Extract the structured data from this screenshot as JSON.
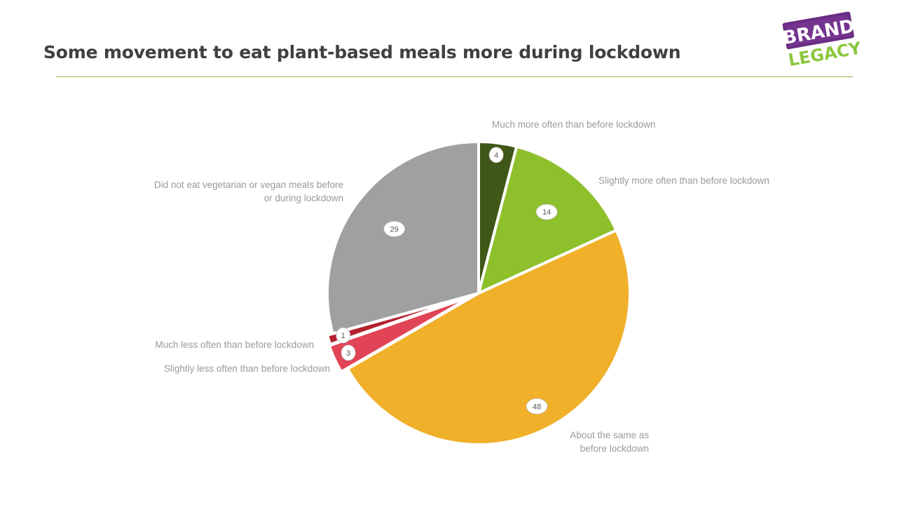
{
  "header": {
    "title": "Some movement to eat plant-based meals more during lockdown"
  },
  "logo": {
    "line1": "BRAND",
    "line2": "LEGACY",
    "colors": {
      "top": "#6a2c84",
      "bottom": "#8cc63f"
    }
  },
  "chart_data": {
    "type": "pie",
    "title": "",
    "slices": [
      {
        "label": "Much more often than before lockdown",
        "value": 4,
        "color": "#3f5717"
      },
      {
        "label": "Slightly more often than before lockdown",
        "value": 14,
        "color": "#8dc02a"
      },
      {
        "label": "About the same as before lockdown",
        "value": 48,
        "color": "#f0b02a"
      },
      {
        "label": "Slightly less often than before lockdown",
        "value": 3,
        "color": "#e04456"
      },
      {
        "label": "Much less often than before lockdown",
        "value": 1,
        "color": "#b3202e"
      },
      {
        "label": "Did not eat vegetarian or vegan meals before or during lockdown",
        "value": 29,
        "color": "#a0a0a0"
      }
    ],
    "label_line_breaks": {
      "2": [
        "About the same as",
        "before lockdown"
      ],
      "5": [
        "Did not eat vegetarian or vegan meals before",
        "or during lockdown"
      ]
    }
  }
}
